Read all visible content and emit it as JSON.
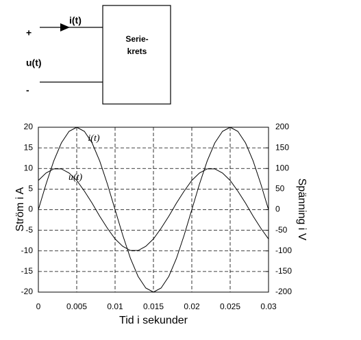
{
  "diagram": {
    "current": "i(t)",
    "plus": "+",
    "voltage": "u(t)",
    "minus": "-",
    "box_line1": "Serie-",
    "box_line2": "krets"
  },
  "chart_data": {
    "type": "line",
    "xlabel": "Tid i sekunder",
    "ylabel": "Ström i A",
    "y2label": "Spänning i V",
    "x": [
      0,
      0.001,
      0.002,
      0.003,
      0.004,
      0.005,
      0.006,
      0.007,
      0.008,
      0.009,
      0.01,
      0.011,
      0.012,
      0.013,
      0.014,
      0.015,
      0.016,
      0.017,
      0.018,
      0.019,
      0.02,
      0.021,
      0.022,
      0.023,
      0.024,
      0.025,
      0.026,
      0.027,
      0.028,
      0.029,
      0.03
    ],
    "series": [
      {
        "name": "i(t)",
        "color": "#000000",
        "values": [
          0,
          6.2,
          11.8,
          16.2,
          19,
          20,
          19,
          16.2,
          11.8,
          6.2,
          0,
          -6.2,
          -11.8,
          -16.2,
          -19,
          -20,
          -19,
          -16.2,
          -11.8,
          -6.2,
          0,
          6.2,
          11.8,
          16.2,
          19,
          20,
          19,
          16.2,
          11.8,
          6.2,
          0
        ]
      },
      {
        "name": "u(t)",
        "color": "#000000",
        "axis": "y2",
        "values": [
          71,
          89,
          99,
          99,
          89,
          71,
          45,
          16,
          -16,
          -45,
          -71,
          -89,
          -99,
          -99,
          -89,
          -71,
          -45,
          -16,
          16,
          45,
          71,
          89,
          99,
          99,
          89,
          71,
          45,
          16,
          -16,
          -45,
          -71
        ]
      }
    ],
    "xlim": [
      0,
      0.03
    ],
    "xticks": [
      0,
      0.005,
      0.01,
      0.015,
      0.02,
      0.025,
      0.03
    ],
    "ylim": [
      -20,
      20
    ],
    "yticks": [
      -20,
      -15,
      -10,
      -5,
      0,
      5,
      10,
      15,
      20
    ],
    "y2lim": [
      -200,
      200
    ],
    "y2ticks": [
      -200,
      -150,
      -100,
      -50,
      0,
      50,
      100,
      150,
      200
    ],
    "grid": true
  }
}
